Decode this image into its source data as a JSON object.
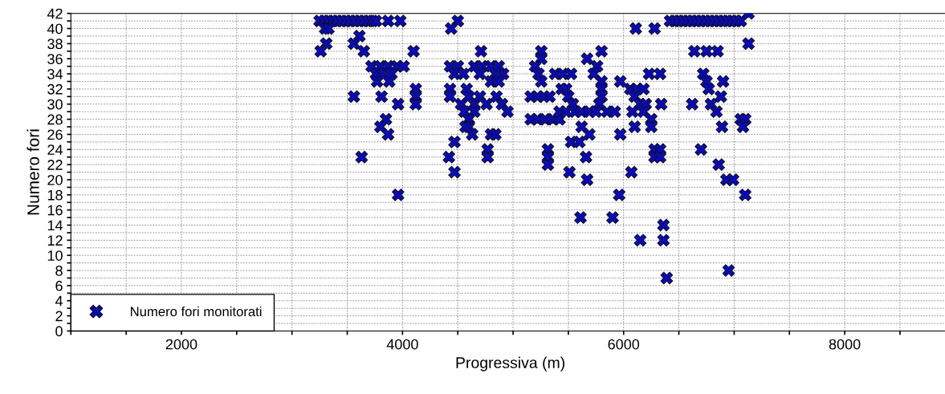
{
  "chart_data": {
    "type": "scatter",
    "xlabel": "Progressiva (m)",
    "ylabel": "Numero fori",
    "xlim": [
      1000,
      8950
    ],
    "xticks": [
      {
        "value": 1000,
        "label": null
      },
      {
        "value": 1500,
        "label": null
      },
      2000,
      {
        "value": 2500,
        "label": null
      },
      {
        "value": 3000,
        "label": null
      },
      {
        "value": 3500,
        "label": null
      },
      4000,
      {
        "value": 4500,
        "label": null
      },
      {
        "value": 5000,
        "label": null
      },
      {
        "value": 5500,
        "label": null
      },
      6000,
      {
        "value": 6500,
        "label": null
      },
      {
        "value": 7000,
        "label": null
      },
      {
        "value": 7500,
        "label": null
      },
      8000,
      {
        "value": 8500,
        "label": null
      }
    ],
    "ylim": [
      0,
      42
    ],
    "yticks": [
      0,
      {
        "value": 1,
        "label": null
      },
      2,
      {
        "value": 3,
        "label": null
      },
      4,
      {
        "value": 5,
        "label": null
      },
      6,
      {
        "value": 7,
        "label": null
      },
      8,
      {
        "value": 9,
        "label": null
      },
      10,
      {
        "value": 11,
        "label": null
      },
      12,
      {
        "value": 13,
        "label": null
      },
      14,
      {
        "value": 15,
        "label": null
      },
      16,
      {
        "value": 17,
        "label": null
      },
      18,
      {
        "value": 19,
        "label": null
      },
      20,
      {
        "value": 21,
        "label": null
      },
      22,
      {
        "value": 23,
        "label": null
      },
      24,
      {
        "value": 25,
        "label": null
      },
      26,
      {
        "value": 27,
        "label": null
      },
      28,
      {
        "value": 29,
        "label": null
      },
      30,
      {
        "value": 31,
        "label": null
      },
      32,
      {
        "value": 33,
        "label": null
      },
      34,
      {
        "value": 35,
        "label": null
      },
      36,
      {
        "value": 37,
        "label": null
      },
      38,
      {
        "value": 39,
        "label": null
      },
      40,
      {
        "value": 41,
        "label": null
      },
      42
    ],
    "grid": true,
    "legend": "bottom left",
    "marker": "cross",
    "series": [
      {
        "name": "Numero fori monitorati",
        "color": "#0a0ab4",
        "x": [
          3250,
          3290,
          3330,
          3370,
          3410,
          3450,
          3490,
          3530,
          3570,
          3610,
          3650,
          3690,
          3730,
          3760,
          3870,
          3980,
          4500,
          3300,
          3330,
          4440,
          3610,
          3310,
          3560,
          3260,
          3650,
          4100,
          4710,
          3720,
          3800,
          3870,
          3950,
          4010,
          3760,
          3830,
          3900,
          3770,
          3880,
          3560,
          3810,
          3960,
          4120,
          4120,
          4120,
          3850,
          3800,
          3870,
          3630,
          3960,
          4420,
          4470,
          4430,
          4500,
          4470,
          4550,
          4650,
          4720,
          4800,
          4870,
          4910,
          4700,
          4840,
          4800,
          4870,
          4430,
          4430,
          4580,
          4530,
          4600,
          4650,
          4700,
          4760,
          4850,
          4900,
          4950,
          4560,
          4650,
          4600,
          4600,
          4630,
          4570,
          4800,
          4840,
          4470,
          4770,
          4770,
          5255,
          5255,
          5200,
          5230,
          5255,
          5380,
          5450,
          5525,
          5670,
          5800,
          5760,
          5730,
          5800,
          5160,
          5220,
          5280,
          5330,
          5440,
          5480,
          5500,
          5540,
          5800,
          5800,
          5780,
          5160,
          5220,
          5290,
          5360,
          5420,
          5420,
          5480,
          5560,
          5620,
          5690,
          5750,
          5620,
          5690,
          5525,
          5600,
          5315,
          5315,
          5315,
          5660,
          5510,
          5670,
          5960,
          5610,
          5900,
          5970,
          5850,
          5920,
          5970,
          6070,
          6150,
          6110,
          6280,
          6230,
          6330,
          6060,
          6120,
          6180,
          6100,
          6150,
          6200,
          6080,
          6180,
          6250,
          6340,
          6100,
          6250,
          6280,
          6280,
          6330,
          6330,
          6360,
          6360,
          6390,
          6420,
          6460,
          6500,
          6540,
          6580,
          6620,
          6660,
          6700,
          6740,
          6780,
          6820,
          6860,
          6900,
          6940,
          6980,
          7020,
          7060,
          7130,
          7130,
          6640,
          6750,
          6850,
          6720,
          6750,
          6770,
          6900,
          6880,
          6620,
          6790,
          6840,
          7060,
          7100,
          7080,
          6890,
          6700,
          6860,
          6930,
          6990,
          7100,
          6950
        ],
        "values": [
          41,
          41,
          41,
          41,
          41,
          41,
          41,
          41,
          41,
          41,
          41,
          41,
          41,
          41,
          41,
          41,
          41,
          40,
          40,
          40,
          39,
          38,
          38,
          37,
          37,
          37,
          37,
          35,
          35,
          35,
          35,
          35,
          34,
          34,
          34,
          33,
          33,
          31,
          31,
          30,
          32,
          31,
          30,
          28,
          27,
          26,
          23,
          18,
          23,
          21,
          35,
          35,
          34,
          34,
          35,
          35,
          35,
          35,
          34,
          34,
          34,
          33,
          33,
          32,
          31,
          32,
          30,
          31,
          30,
          31,
          30,
          31,
          30,
          29,
          29,
          29,
          28,
          27,
          26,
          27,
          26,
          26,
          25,
          24,
          23,
          37,
          36,
          35,
          34,
          33,
          34,
          34,
          34,
          36,
          37,
          35,
          34,
          33,
          31,
          31,
          31,
          31,
          32,
          32,
          31,
          30,
          32,
          31,
          30,
          28,
          28,
          28,
          28,
          28,
          29,
          29,
          29,
          29,
          29,
          29,
          27,
          26,
          25,
          25,
          24,
          23,
          22,
          23,
          21,
          20,
          18,
          15,
          15,
          33,
          29,
          29,
          26,
          21,
          12,
          40,
          40,
          34,
          34,
          32,
          32,
          32,
          31,
          30,
          30,
          29,
          29,
          28,
          30,
          27,
          27,
          24,
          23,
          24,
          23,
          14,
          12,
          7,
          41,
          41,
          41,
          41,
          41,
          41,
          41,
          41,
          41,
          41,
          41,
          41,
          41,
          41,
          41,
          41,
          41,
          42,
          38,
          37,
          37,
          37,
          34,
          33,
          32,
          33,
          31,
          30,
          30,
          29,
          28,
          28,
          27,
          27,
          24,
          22,
          20,
          20,
          18,
          8
        ]
      }
    ]
  }
}
